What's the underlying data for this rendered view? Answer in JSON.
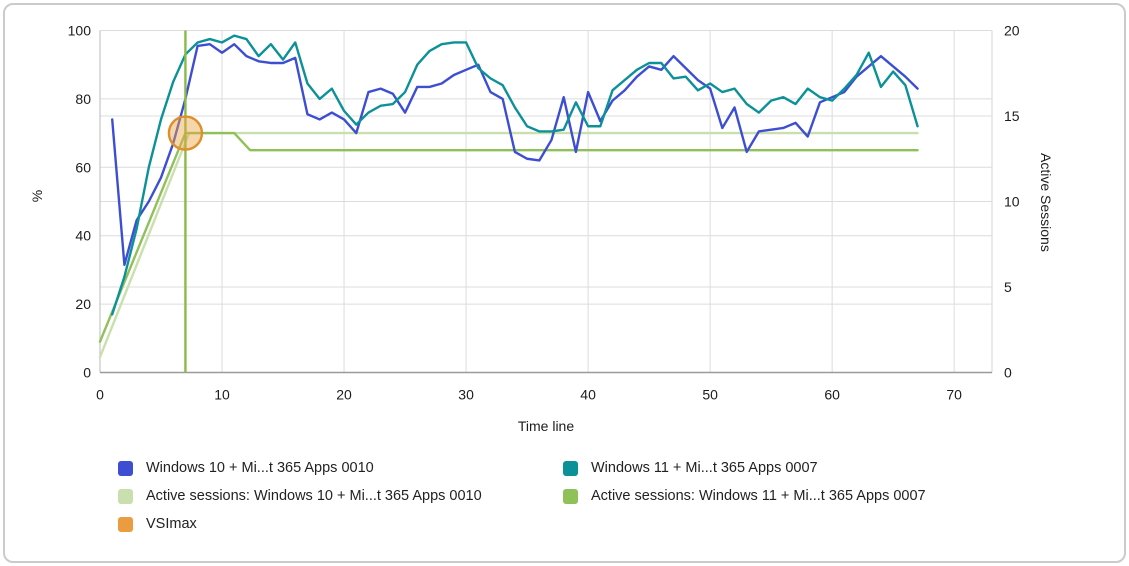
{
  "axes": {
    "y_left_title": "%",
    "y_right_title": "Active Sessions",
    "x_title": "Time line"
  },
  "legend": {
    "items": [
      {
        "label": "Windows 10 + Mi...t 365 Apps 0010",
        "color": "#3d4ed2"
      },
      {
        "label": "Windows 11 + Mi...t 365 Apps 0007",
        "color": "#0c9198"
      },
      {
        "label": "Active sessions: Windows 10 + Mi...t 365 Apps 0010",
        "color": "#c9e0ae"
      },
      {
        "label": "Active sessions: Windows 11 + Mi...t 365 Apps 0007",
        "color": "#8fc158"
      },
      {
        "label": "VSImax",
        "color": "#eb9c3f"
      }
    ]
  },
  "chart_data": {
    "type": "line",
    "title": "",
    "xlabel": "Time line",
    "ylabel_left": "%",
    "ylabel_right": "Active Sessions",
    "grid": true,
    "legend_position": "bottom",
    "x_range": [
      0,
      73.1
    ],
    "x_ticks": [
      0,
      10,
      20,
      30,
      40,
      50,
      60,
      70
    ],
    "y_left_range": [
      0,
      100
    ],
    "y_left_ticks": [
      0,
      20,
      40,
      60,
      80,
      100
    ],
    "y_right_range": [
      0,
      20
    ],
    "y_right_ticks": [
      0,
      5,
      10,
      15,
      20
    ],
    "grid_y_left_values": [
      20,
      25,
      40,
      50,
      60,
      75,
      80,
      100
    ],
    "colors": {
      "grid": "#dcdcdc",
      "plot_border": "#c6c6c6",
      "axis_line": "#9a9a9a"
    },
    "series": [
      {
        "id": "active-sessions-win10",
        "name": "Active sessions: Windows 10 + Mi...t 365 Apps 0010",
        "axis": "right",
        "unit": "sessions",
        "color": "#c9e0ae",
        "points": [
          [
            0,
            0.9
          ],
          [
            7.3,
            14
          ],
          [
            67,
            14
          ]
        ]
      },
      {
        "id": "active-sessions-win11",
        "name": "Active sessions: Windows 11 + Mi...t 365 Apps 0007",
        "axis": "right",
        "unit": "sessions",
        "color": "#8fc158",
        "points": [
          [
            0,
            1.8
          ],
          [
            7,
            14
          ],
          [
            11,
            14
          ],
          [
            12.3,
            13
          ],
          [
            67,
            13
          ]
        ]
      },
      {
        "id": "win10-response",
        "name": "Windows 10 + Mi...t 365 Apps 0010",
        "axis": "left",
        "unit": "%",
        "color": "#3d4ed2",
        "x_start": 1,
        "values": [
          74,
          31.5,
          44.5,
          50,
          57,
          67,
          80,
          95.5,
          96,
          93.5,
          96,
          92.5,
          91,
          90.5,
          90.5,
          92,
          75.5,
          74,
          76,
          74,
          70,
          82,
          83,
          81.5,
          76,
          83.5,
          83.5,
          84.5,
          87,
          88.5,
          90,
          82,
          80,
          64.5,
          62.5,
          62,
          68,
          80.5,
          64.5,
          82,
          73.5,
          79.5,
          82.5,
          86.5,
          89.5,
          88.5,
          92.5,
          89,
          85.5,
          83,
          71.5,
          77.5,
          64.5,
          70.5,
          71,
          71.5,
          73,
          69,
          79,
          80.5,
          82,
          86.5,
          89.5,
          92.5,
          89.5,
          86.5,
          83
        ]
      },
      {
        "id": "win11-response",
        "name": "Windows 11 + Mi...t 365 Apps 0007",
        "axis": "left",
        "unit": "%",
        "color": "#0c9198",
        "x_start": 1,
        "values": [
          17,
          28,
          42,
          60,
          74,
          85,
          93,
          96.5,
          97.5,
          96.5,
          98.5,
          97.5,
          92.5,
          96,
          91.5,
          96.5,
          84.5,
          80,
          83,
          76.5,
          72.5,
          76,
          78,
          78.5,
          82,
          90,
          94,
          96,
          96.5,
          96.5,
          89,
          86,
          84,
          77.5,
          72,
          70.5,
          70.5,
          71,
          79,
          72,
          72,
          82.5,
          85.5,
          88.5,
          90.5,
          90.5,
          86,
          86.5,
          82.5,
          84.5,
          82,
          83,
          78.5,
          76,
          79.5,
          80.5,
          78.5,
          83,
          80.5,
          79.5,
          83,
          87,
          93.5,
          83.5,
          88,
          84,
          72
        ]
      }
    ],
    "vsimax": {
      "label": "VSImax",
      "x": 7,
      "sessions": 14,
      "value_pct": 70,
      "line_color": "#8abb45",
      "marker_fill": "#f0a448",
      "marker_stroke": "#dd8f2b"
    }
  }
}
